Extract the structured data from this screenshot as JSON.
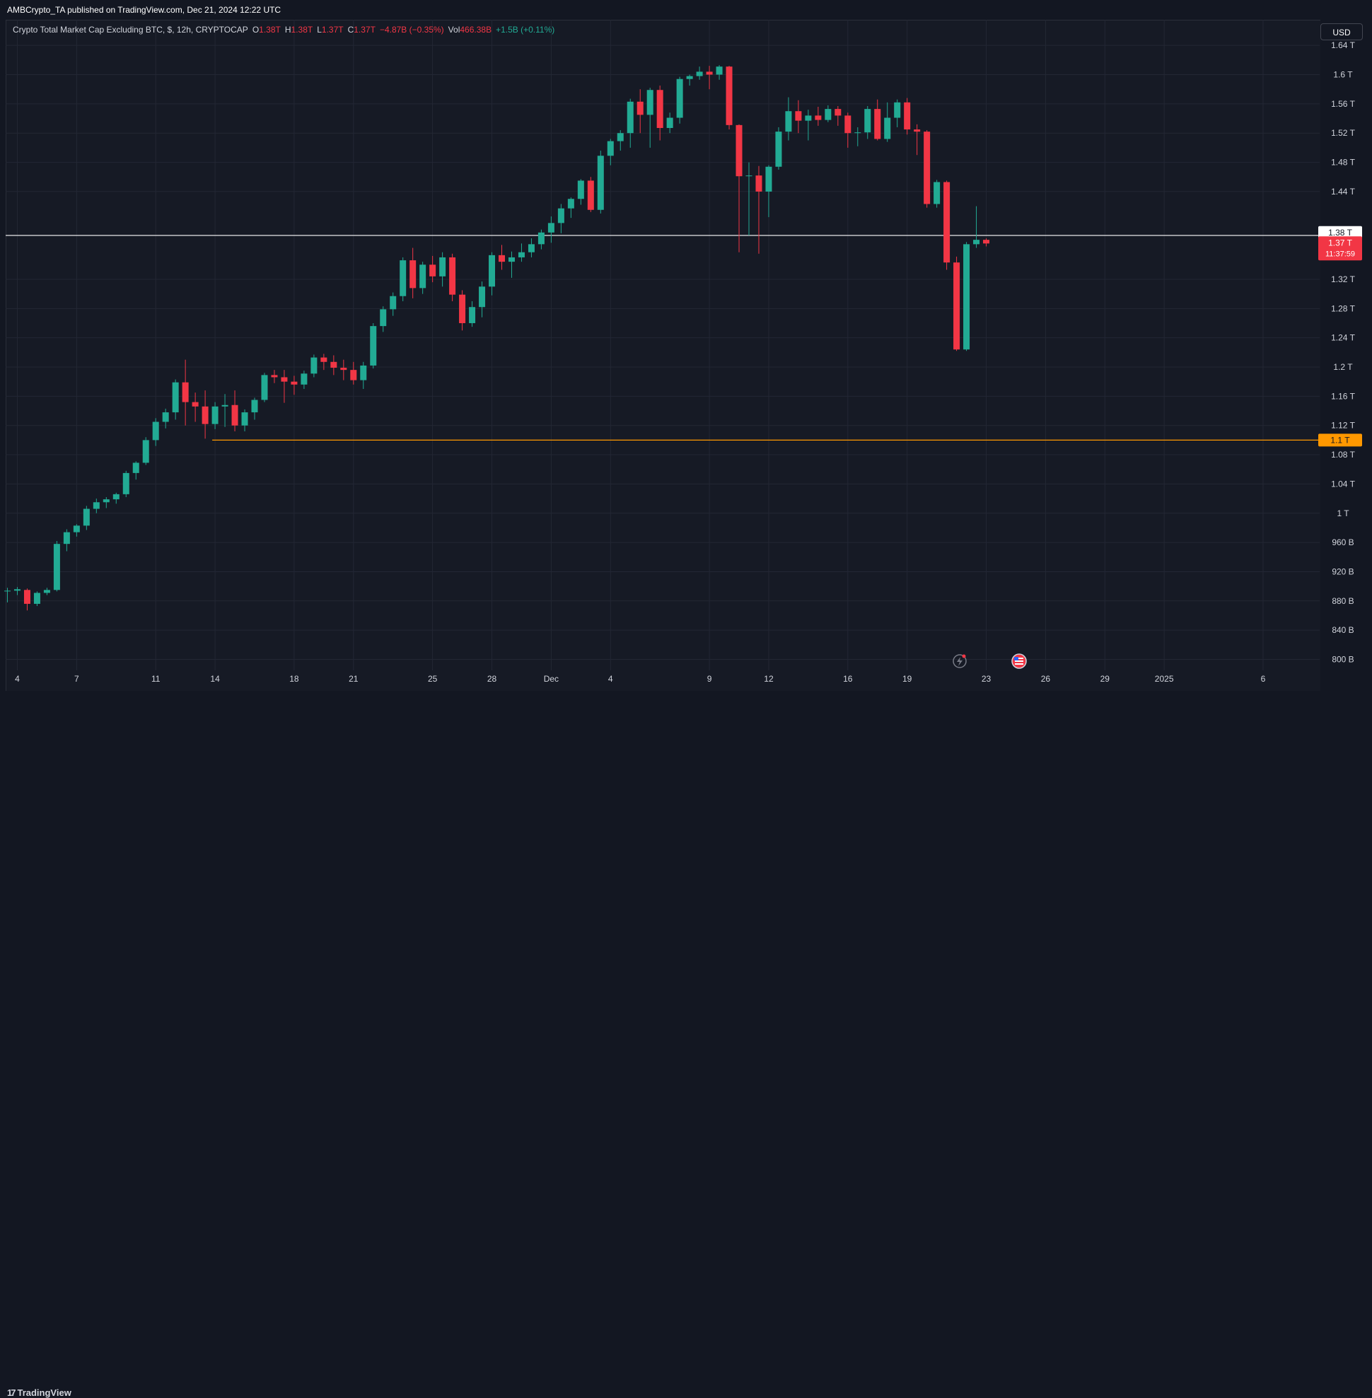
{
  "header": {
    "published": "AMBCrypto_TA published on TradingView.com, Dec 21, 2024 12:22 UTC"
  },
  "legend": {
    "title": "Crypto Total Market Cap Excluding BTC, $, 12h, CRYPTOCAP",
    "open_label": "O",
    "open": "1.38T",
    "high_label": "H",
    "high": "1.38T",
    "low_label": "L",
    "low": "1.37T",
    "close_label": "C",
    "close": "1.37T",
    "change": "−4.87B (−0.35%)",
    "vol_label": "Vol",
    "vol": "466.38B",
    "vol_change": "+1.5B (+0.11%)"
  },
  "currency_button": "USD",
  "footer": {
    "logo_text": "TradingView",
    "logo_mark": "17"
  },
  "colors": {
    "up": "#22ab94",
    "down": "#f23645",
    "background": "#161a25",
    "grid": "#232734",
    "support_line": "#ff9800",
    "price_line": "#ffffff"
  },
  "chart_data": {
    "type": "candlestick",
    "title": "Crypto Total Market Cap Excluding BTC, $, 12h, CRYPTOCAP",
    "interval": "12h",
    "y_unit": "USD",
    "ylim": [
      0.785,
      1.675
    ],
    "y_ticks": [
      {
        "v": 0.8,
        "label": "800 B"
      },
      {
        "v": 0.84,
        "label": "840 B"
      },
      {
        "v": 0.88,
        "label": "880 B"
      },
      {
        "v": 0.92,
        "label": "920 B"
      },
      {
        "v": 0.96,
        "label": "960 B"
      },
      {
        "v": 1.0,
        "label": "1 T"
      },
      {
        "v": 1.04,
        "label": "1.04 T"
      },
      {
        "v": 1.08,
        "label": "1.08 T"
      },
      {
        "v": 1.12,
        "label": "1.12 T"
      },
      {
        "v": 1.16,
        "label": "1.16 T"
      },
      {
        "v": 1.2,
        "label": "1.2 T"
      },
      {
        "v": 1.24,
        "label": "1.24 T"
      },
      {
        "v": 1.28,
        "label": "1.28 T"
      },
      {
        "v": 1.32,
        "label": "1.32 T"
      },
      {
        "v": 1.44,
        "label": "1.44 T"
      },
      {
        "v": 1.48,
        "label": "1.48 T"
      },
      {
        "v": 1.52,
        "label": "1.52 T"
      },
      {
        "v": 1.56,
        "label": "1.56 T"
      },
      {
        "v": 1.6,
        "label": "1.6 T"
      },
      {
        "v": 1.64,
        "label": "1.64 T"
      }
    ],
    "x_ticks": [
      {
        "i": 1,
        "label": "4"
      },
      {
        "i": 7,
        "label": "7"
      },
      {
        "i": 15,
        "label": "11"
      },
      {
        "i": 21,
        "label": "14"
      },
      {
        "i": 29,
        "label": "18"
      },
      {
        "i": 35,
        "label": "21"
      },
      {
        "i": 43,
        "label": "25"
      },
      {
        "i": 49,
        "label": "28"
      },
      {
        "i": 55,
        "label": "Dec"
      },
      {
        "i": 61,
        "label": "4"
      },
      {
        "i": 71,
        "label": "9"
      },
      {
        "i": 77,
        "label": "12"
      },
      {
        "i": 85,
        "label": "16"
      },
      {
        "i": 91,
        "label": "19"
      },
      {
        "i": 99,
        "label": "23"
      },
      {
        "i": 105,
        "label": "26"
      },
      {
        "i": 111,
        "label": "29"
      },
      {
        "i": 117,
        "label": "2025"
      },
      {
        "i": 127,
        "label": "6"
      }
    ],
    "candles": [
      {
        "o": 0.893,
        "h": 0.898,
        "l": 0.878,
        "c": 0.894
      },
      {
        "o": 0.894,
        "h": 0.899,
        "l": 0.888,
        "c": 0.896
      },
      {
        "o": 0.895,
        "h": 0.897,
        "l": 0.867,
        "c": 0.876
      },
      {
        "o": 0.876,
        "h": 0.893,
        "l": 0.873,
        "c": 0.891
      },
      {
        "o": 0.891,
        "h": 0.898,
        "l": 0.888,
        "c": 0.895
      },
      {
        "o": 0.895,
        "h": 0.962,
        "l": 0.893,
        "c": 0.958
      },
      {
        "o": 0.958,
        "h": 0.978,
        "l": 0.948,
        "c": 0.974
      },
      {
        "o": 0.974,
        "h": 0.985,
        "l": 0.968,
        "c": 0.983
      },
      {
        "o": 0.983,
        "h": 1.01,
        "l": 0.977,
        "c": 1.006
      },
      {
        "o": 1.006,
        "h": 1.02,
        "l": 1.0,
        "c": 1.015
      },
      {
        "o": 1.015,
        "h": 1.022,
        "l": 1.007,
        "c": 1.019
      },
      {
        "o": 1.019,
        "h": 1.028,
        "l": 1.013,
        "c": 1.026
      },
      {
        "o": 1.026,
        "h": 1.058,
        "l": 1.022,
        "c": 1.055
      },
      {
        "o": 1.055,
        "h": 1.071,
        "l": 1.046,
        "c": 1.069
      },
      {
        "o": 1.069,
        "h": 1.104,
        "l": 1.066,
        "c": 1.1
      },
      {
        "o": 1.1,
        "h": 1.13,
        "l": 1.092,
        "c": 1.125
      },
      {
        "o": 1.125,
        "h": 1.143,
        "l": 1.116,
        "c": 1.138
      },
      {
        "o": 1.138,
        "h": 1.183,
        "l": 1.128,
        "c": 1.179
      },
      {
        "o": 1.179,
        "h": 1.21,
        "l": 1.12,
        "c": 1.152
      },
      {
        "o": 1.152,
        "h": 1.165,
        "l": 1.125,
        "c": 1.146
      },
      {
        "o": 1.146,
        "h": 1.168,
        "l": 1.102,
        "c": 1.122
      },
      {
        "o": 1.122,
        "h": 1.152,
        "l": 1.115,
        "c": 1.146
      },
      {
        "o": 1.146,
        "h": 1.163,
        "l": 1.118,
        "c": 1.148
      },
      {
        "o": 1.148,
        "h": 1.168,
        "l": 1.112,
        "c": 1.12
      },
      {
        "o": 1.12,
        "h": 1.142,
        "l": 1.112,
        "c": 1.138
      },
      {
        "o": 1.138,
        "h": 1.158,
        "l": 1.128,
        "c": 1.155
      },
      {
        "o": 1.155,
        "h": 1.192,
        "l": 1.152,
        "c": 1.189
      },
      {
        "o": 1.189,
        "h": 1.196,
        "l": 1.178,
        "c": 1.186
      },
      {
        "o": 1.186,
        "h": 1.196,
        "l": 1.151,
        "c": 1.18
      },
      {
        "o": 1.18,
        "h": 1.188,
        "l": 1.162,
        "c": 1.176
      },
      {
        "o": 1.176,
        "h": 1.195,
        "l": 1.17,
        "c": 1.191
      },
      {
        "o": 1.191,
        "h": 1.217,
        "l": 1.186,
        "c": 1.213
      },
      {
        "o": 1.213,
        "h": 1.218,
        "l": 1.196,
        "c": 1.207
      },
      {
        "o": 1.207,
        "h": 1.216,
        "l": 1.189,
        "c": 1.199
      },
      {
        "o": 1.199,
        "h": 1.21,
        "l": 1.182,
        "c": 1.196
      },
      {
        "o": 1.196,
        "h": 1.207,
        "l": 1.176,
        "c": 1.182
      },
      {
        "o": 1.182,
        "h": 1.207,
        "l": 1.17,
        "c": 1.202
      },
      {
        "o": 1.202,
        "h": 1.26,
        "l": 1.198,
        "c": 1.256
      },
      {
        "o": 1.256,
        "h": 1.283,
        "l": 1.248,
        "c": 1.279
      },
      {
        "o": 1.279,
        "h": 1.302,
        "l": 1.27,
        "c": 1.297
      },
      {
        "o": 1.297,
        "h": 1.35,
        "l": 1.29,
        "c": 1.346
      },
      {
        "o": 1.346,
        "h": 1.363,
        "l": 1.294,
        "c": 1.308
      },
      {
        "o": 1.308,
        "h": 1.344,
        "l": 1.3,
        "c": 1.34
      },
      {
        "o": 1.34,
        "h": 1.352,
        "l": 1.316,
        "c": 1.324
      },
      {
        "o": 1.324,
        "h": 1.357,
        "l": 1.31,
        "c": 1.35
      },
      {
        "o": 1.35,
        "h": 1.355,
        "l": 1.29,
        "c": 1.299
      },
      {
        "o": 1.299,
        "h": 1.305,
        "l": 1.25,
        "c": 1.26
      },
      {
        "o": 1.26,
        "h": 1.29,
        "l": 1.255,
        "c": 1.282
      },
      {
        "o": 1.282,
        "h": 1.317,
        "l": 1.268,
        "c": 1.31
      },
      {
        "o": 1.31,
        "h": 1.357,
        "l": 1.298,
        "c": 1.353
      },
      {
        "o": 1.353,
        "h": 1.367,
        "l": 1.333,
        "c": 1.344
      },
      {
        "o": 1.344,
        "h": 1.358,
        "l": 1.322,
        "c": 1.35
      },
      {
        "o": 1.35,
        "h": 1.369,
        "l": 1.344,
        "c": 1.357
      },
      {
        "o": 1.357,
        "h": 1.376,
        "l": 1.35,
        "c": 1.368
      },
      {
        "o": 1.368,
        "h": 1.388,
        "l": 1.361,
        "c": 1.384
      },
      {
        "o": 1.384,
        "h": 1.406,
        "l": 1.37,
        "c": 1.397
      },
      {
        "o": 1.397,
        "h": 1.423,
        "l": 1.383,
        "c": 1.417
      },
      {
        "o": 1.417,
        "h": 1.432,
        "l": 1.404,
        "c": 1.43
      },
      {
        "o": 1.43,
        "h": 1.457,
        "l": 1.422,
        "c": 1.455
      },
      {
        "o": 1.455,
        "h": 1.46,
        "l": 1.412,
        "c": 1.415
      },
      {
        "o": 1.415,
        "h": 1.496,
        "l": 1.41,
        "c": 1.489
      },
      {
        "o": 1.489,
        "h": 1.512,
        "l": 1.476,
        "c": 1.509
      },
      {
        "o": 1.509,
        "h": 1.524,
        "l": 1.496,
        "c": 1.52
      },
      {
        "o": 1.52,
        "h": 1.567,
        "l": 1.5,
        "c": 1.563
      },
      {
        "o": 1.563,
        "h": 1.58,
        "l": 1.52,
        "c": 1.545
      },
      {
        "o": 1.545,
        "h": 1.582,
        "l": 1.5,
        "c": 1.579
      },
      {
        "o": 1.579,
        "h": 1.585,
        "l": 1.51,
        "c": 1.527
      },
      {
        "o": 1.527,
        "h": 1.548,
        "l": 1.52,
        "c": 1.541
      },
      {
        "o": 1.541,
        "h": 1.597,
        "l": 1.533,
        "c": 1.594
      },
      {
        "o": 1.594,
        "h": 1.6,
        "l": 1.585,
        "c": 1.598
      },
      {
        "o": 1.598,
        "h": 1.611,
        "l": 1.593,
        "c": 1.604
      },
      {
        "o": 1.604,
        "h": 1.612,
        "l": 1.58,
        "c": 1.6
      },
      {
        "o": 1.6,
        "h": 1.613,
        "l": 1.593,
        "c": 1.611
      },
      {
        "o": 1.611,
        "h": 1.612,
        "l": 1.525,
        "c": 1.531
      },
      {
        "o": 1.531,
        "h": 1.532,
        "l": 1.357,
        "c": 1.461
      },
      {
        "o": 1.461,
        "h": 1.48,
        "l": 1.38,
        "c": 1.462
      },
      {
        "o": 1.462,
        "h": 1.475,
        "l": 1.355,
        "c": 1.44
      },
      {
        "o": 1.44,
        "h": 1.476,
        "l": 1.405,
        "c": 1.474
      },
      {
        "o": 1.474,
        "h": 1.528,
        "l": 1.47,
        "c": 1.522
      },
      {
        "o": 1.522,
        "h": 1.569,
        "l": 1.51,
        "c": 1.55
      },
      {
        "o": 1.55,
        "h": 1.565,
        "l": 1.52,
        "c": 1.537
      },
      {
        "o": 1.537,
        "h": 1.552,
        "l": 1.51,
        "c": 1.544
      },
      {
        "o": 1.544,
        "h": 1.556,
        "l": 1.53,
        "c": 1.538
      },
      {
        "o": 1.538,
        "h": 1.558,
        "l": 1.535,
        "c": 1.553
      },
      {
        "o": 1.553,
        "h": 1.557,
        "l": 1.53,
        "c": 1.544
      },
      {
        "o": 1.544,
        "h": 1.548,
        "l": 1.5,
        "c": 1.52
      },
      {
        "o": 1.52,
        "h": 1.528,
        "l": 1.502,
        "c": 1.521
      },
      {
        "o": 1.521,
        "h": 1.557,
        "l": 1.512,
        "c": 1.553
      },
      {
        "o": 1.553,
        "h": 1.566,
        "l": 1.51,
        "c": 1.512
      },
      {
        "o": 1.512,
        "h": 1.562,
        "l": 1.508,
        "c": 1.541
      },
      {
        "o": 1.541,
        "h": 1.566,
        "l": 1.528,
        "c": 1.562
      },
      {
        "o": 1.562,
        "h": 1.568,
        "l": 1.518,
        "c": 1.525
      },
      {
        "o": 1.525,
        "h": 1.532,
        "l": 1.49,
        "c": 1.522
      },
      {
        "o": 1.522,
        "h": 1.524,
        "l": 1.418,
        "c": 1.423
      },
      {
        "o": 1.423,
        "h": 1.456,
        "l": 1.418,
        "c": 1.453
      },
      {
        "o": 1.453,
        "h": 1.455,
        "l": 1.333,
        "c": 1.343
      },
      {
        "o": 1.343,
        "h": 1.351,
        "l": 1.222,
        "c": 1.224
      },
      {
        "o": 1.224,
        "h": 1.371,
        "l": 1.222,
        "c": 1.368
      },
      {
        "o": 1.368,
        "h": 1.42,
        "l": 1.363,
        "c": 1.374
      },
      {
        "o": 1.374,
        "h": 1.376,
        "l": 1.365,
        "c": 1.369
      }
    ],
    "horizontal_lines": [
      {
        "value": 1.38,
        "color": "#ffffff",
        "label": "1.38 T"
      },
      {
        "value": 1.1,
        "color": "#ff9800",
        "label": "1.1 T",
        "start_index": 21
      }
    ],
    "price_label": {
      "value": 1.37,
      "label": "1.37 T",
      "countdown": "11:37:59"
    }
  }
}
